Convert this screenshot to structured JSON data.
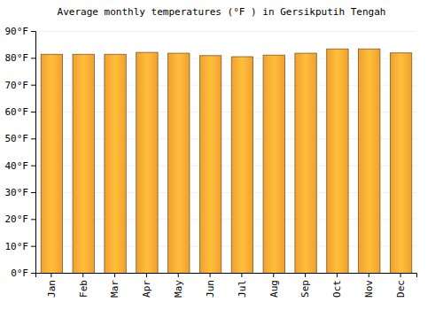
{
  "chart_data": {
    "type": "bar",
    "title": "Average monthly temperatures (°F ) in Gersikputih Tengah",
    "categories": [
      "Jan",
      "Feb",
      "Mar",
      "Apr",
      "May",
      "Jun",
      "Jul",
      "Aug",
      "Sep",
      "Oct",
      "Nov",
      "Dec"
    ],
    "values": [
      81.5,
      81.5,
      81.5,
      82.2,
      81.9,
      81.0,
      80.6,
      81.2,
      81.9,
      83.5,
      83.5,
      82.0
    ],
    "color": "#fda933",
    "ylim": [
      0,
      90
    ],
    "yticks": [
      {
        "value": 0,
        "label": "0°F"
      },
      {
        "value": 10,
        "label": "10°F"
      },
      {
        "value": 20,
        "label": "20°F"
      },
      {
        "value": 30,
        "label": "30°F"
      },
      {
        "value": 40,
        "label": "40°F"
      },
      {
        "value": 50,
        "label": "50°F"
      },
      {
        "value": 60,
        "label": "60°F"
      },
      {
        "value": 70,
        "label": "70°F"
      },
      {
        "value": 80,
        "label": "80°F"
      },
      {
        "value": 90,
        "label": "90°F"
      }
    ],
    "grid": true
  }
}
